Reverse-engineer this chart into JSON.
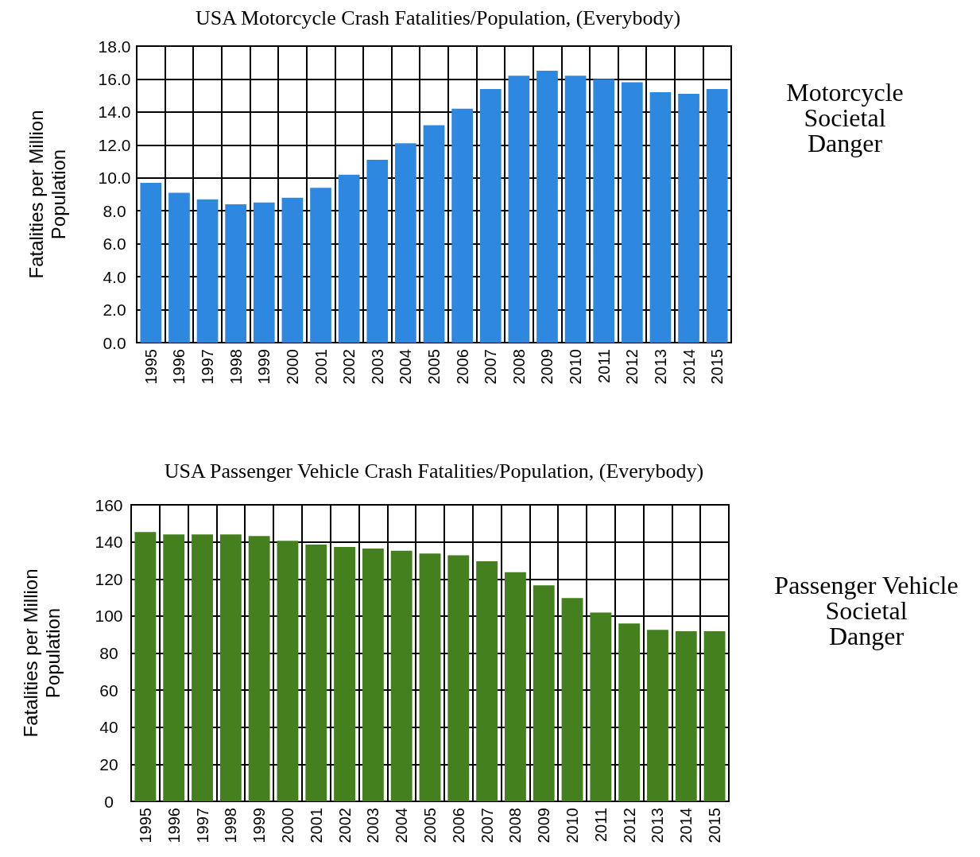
{
  "chart_data": [
    {
      "type": "bar",
      "title": "USA Motorcycle Crash Fatalities/Population, (Everybody)",
      "ylabel": "Fatalities per Million\nPopulation",
      "annotations": [
        "Motorcycle\nSocietal\nDanger"
      ],
      "categories": [
        "1995",
        "1996",
        "1997",
        "1998",
        "1999",
        "2000",
        "2001",
        "2002",
        "2003",
        "2004",
        "2005",
        "2006",
        "2007",
        "2008",
        "2009",
        "2010",
        "2011",
        "2012",
        "2013",
        "2014",
        "2015"
      ],
      "values": [
        9.7,
        9.1,
        8.7,
        8.4,
        8.5,
        8.8,
        9.4,
        10.2,
        11.1,
        12.1,
        13.2,
        14.2,
        15.4,
        16.2,
        16.5,
        16.2,
        16.0,
        15.8,
        15.2,
        15.1,
        15.4
      ],
      "color": "#2f88e0",
      "ylim": [
        0,
        18
      ],
      "yticks": [
        {
          "value": 0,
          "label": "0.0"
        },
        {
          "value": 2,
          "label": "2.0"
        },
        {
          "value": 4,
          "label": "4.0"
        },
        {
          "value": 6,
          "label": "6.0"
        },
        {
          "value": 8,
          "label": "8.0"
        },
        {
          "value": 10,
          "label": "10.0"
        },
        {
          "value": 12,
          "label": "12.0"
        },
        {
          "value": 14,
          "label": "14.0"
        },
        {
          "value": 16,
          "label": "16.0"
        },
        {
          "value": 18,
          "label": "18.0"
        }
      ],
      "grid": true
    },
    {
      "type": "bar",
      "title": "USA Passenger Vehicle Crash Fatalities/Population, (Everybody)",
      "ylabel": "Fatalities per Million\nPopulation",
      "annotations": [
        "Passenger Vehicle\nSocietal\nDanger"
      ],
      "categories": [
        "1995",
        "1996",
        "1997",
        "1998",
        "1999",
        "2000",
        "2001",
        "2002",
        "2003",
        "2004",
        "2005",
        "2006",
        "2007",
        "2008",
        "2009",
        "2010",
        "2011",
        "2012",
        "2013",
        "2014",
        "2015"
      ],
      "values": [
        145.3,
        144,
        144,
        144,
        143.2,
        140.6,
        138.5,
        137.3,
        136.4,
        135.2,
        133.7,
        132.8,
        129.5,
        123.6,
        116.6,
        109.7,
        101.9,
        96,
        92.6,
        91.8,
        91.8
      ],
      "color": "#45801e",
      "ylim": [
        0,
        160
      ],
      "yticks": [
        0,
        20,
        40,
        60,
        80,
        100,
        120,
        140,
        160
      ],
      "grid": true
    }
  ]
}
